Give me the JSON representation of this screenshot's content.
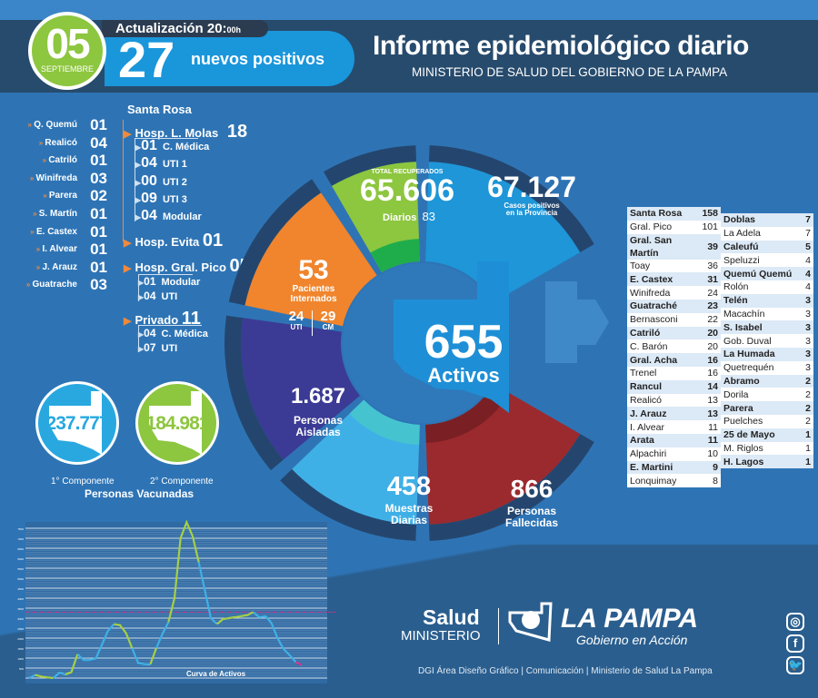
{
  "header": {
    "day": "05",
    "month": "SEPTIEMBRE",
    "update_label": "Actualización 20:",
    "update_time": "00h",
    "new_positives": "27",
    "new_positives_label": "nuevos positivos",
    "title": "Informe epidemiológico diario",
    "subtitle": "MINISTERIO DE SALUD DEL GOBIERNO DE LA PAMPA"
  },
  "internados_localidades": [
    {
      "name": "Q. Quemú",
      "value": "01"
    },
    {
      "name": "Realicó",
      "value": "04"
    },
    {
      "name": "Catriló",
      "value": "01"
    },
    {
      "name": "Winifreda",
      "value": "03"
    },
    {
      "name": "Parera",
      "value": "02"
    },
    {
      "name": "S. Martín",
      "value": "01"
    },
    {
      "name": "E. Castex",
      "value": "01"
    },
    {
      "name": "I. Alvear",
      "value": "01"
    },
    {
      "name": "J. Arauz",
      "value": "01"
    },
    {
      "name": "Guatrache",
      "value": "03"
    }
  ],
  "santa_rosa": {
    "label": "Santa Rosa",
    "molas": {
      "label": "Hosp. L. Molas",
      "value": "18",
      "items": [
        {
          "value": "01",
          "label": "C. Médica"
        },
        {
          "value": "04",
          "label": "UTI 1"
        },
        {
          "value": "00",
          "label": "UTI 2"
        },
        {
          "value": "09",
          "label": "UTI 3"
        },
        {
          "value": "04",
          "label": "Modular"
        }
      ]
    },
    "evita": {
      "label": "Hosp. Evita",
      "value": "01"
    }
  },
  "gral_pico": {
    "label": "Hosp. Gral. Pico",
    "value": "05",
    "items": [
      {
        "value": "01",
        "label": "Modular"
      },
      {
        "value": "04",
        "label": "UTI"
      }
    ]
  },
  "privado": {
    "label": "Privado",
    "value": "11",
    "items": [
      {
        "value": "04",
        "label": "C. Médica"
      },
      {
        "value": "07",
        "label": "UTI"
      }
    ]
  },
  "vacunas": {
    "first": "237.777",
    "first_label": "1° Componente",
    "second": "184.981",
    "second_label": "2° Componente",
    "title": "Personas Vacunadas"
  },
  "donut": {
    "recuperados": {
      "label": "TOTAL RECUPERADOS",
      "value": "65.606",
      "daily_label": "Diarios",
      "daily": "83",
      "color": "#8dc63f"
    },
    "positivos": {
      "value": "67.127",
      "label1": "Casos positivos",
      "label2": "en la Provincia",
      "color": "#1e96d8"
    },
    "internados": {
      "value": "53",
      "label1": "Pacientes",
      "label2": "Internados",
      "uti": "24",
      "uti_label": "UTI",
      "cm": "29",
      "cm_label": "CM",
      "color": "#f0852d"
    },
    "aisladas": {
      "value": "1.687",
      "label1": "Personas",
      "label2": "Aisladas",
      "color": "#3b3b95"
    },
    "muestras": {
      "value": "458",
      "label1": "Muestras",
      "label2": "Diarias",
      "color": "#3fb0e6"
    },
    "fallecidas": {
      "value": "866",
      "label1": "Personas",
      "label2": "Fallecidas",
      "color": "#9b2a2e"
    },
    "activos": {
      "value": "655",
      "label": "Activos",
      "color": "#1e8fd6"
    }
  },
  "table_left": [
    [
      "Santa Rosa",
      "158",
      true
    ],
    [
      "Gral. Pico",
      "101",
      false
    ],
    [
      "Gral. San Martín",
      "39",
      true
    ],
    [
      "Toay",
      "36",
      false
    ],
    [
      "E. Castex",
      "31",
      true
    ],
    [
      "Winifreda",
      "24",
      false
    ],
    [
      "Guatraché",
      "23",
      true
    ],
    [
      "Bernasconi",
      "22",
      false
    ],
    [
      "Catriló",
      "20",
      true
    ],
    [
      "C. Barón",
      "20",
      false
    ],
    [
      "Gral. Acha",
      "16",
      true
    ],
    [
      "Trenel",
      "16",
      false
    ],
    [
      "Rancul",
      "14",
      true
    ],
    [
      "Realicó",
      "13",
      false
    ],
    [
      "J. Arauz",
      "13",
      true
    ],
    [
      "I. Alvear",
      "11",
      false
    ],
    [
      "Arata",
      "11",
      true
    ],
    [
      "Alpachiri",
      "10",
      false
    ],
    [
      "E. Martini",
      "9",
      true
    ],
    [
      "Lonquimay",
      "8",
      false
    ]
  ],
  "table_right": [
    [
      "Doblas",
      "7",
      true
    ],
    [
      "La Adela",
      "7",
      false
    ],
    [
      "Caleufú",
      "5",
      true
    ],
    [
      "Speluzzi",
      "4",
      false
    ],
    [
      "Quemú Quemú",
      "4",
      true
    ],
    [
      "Rolón",
      "4",
      false
    ],
    [
      "Telén",
      "3",
      true
    ],
    [
      "Macachín",
      "3",
      false
    ],
    [
      "S. Isabel",
      "3",
      true
    ],
    [
      "Gob. Duval",
      "3",
      false
    ],
    [
      "La Humada",
      "3",
      true
    ],
    [
      "Quetrequén",
      "3",
      false
    ],
    [
      "Abramo",
      "2",
      true
    ],
    [
      "Dorila",
      "2",
      false
    ],
    [
      "Parera",
      "2",
      true
    ],
    [
      "Puelches",
      "2",
      false
    ],
    [
      "25 de Mayo",
      "1",
      true
    ],
    [
      "M. Riglos",
      "1",
      false
    ],
    [
      "H. Lagos",
      "1",
      true
    ]
  ],
  "chart_data": {
    "type": "line",
    "title": "Curva de Activos",
    "xlabel": "",
    "ylabel": "",
    "ylim": [
      0,
      7500
    ],
    "yticks": [
      500,
      1000,
      1500,
      2000,
      2500,
      3000,
      3500,
      4000,
      4500,
      5000,
      5500,
      6000,
      6500,
      7000,
      7500
    ],
    "reference_line": 3300,
    "grid": true,
    "segments": [
      {
        "color": "#3fb0e6",
        "values": [
          0,
          150
        ]
      },
      {
        "color": "#a6cf45",
        "values": [
          150,
          80,
          30,
          0
        ]
      },
      {
        "color": "#3fb0e6",
        "values": [
          0,
          270,
          180
        ]
      },
      {
        "color": "#a6cf45",
        "values": [
          180,
          300,
          1200
        ]
      },
      {
        "color": "#3fb0e6",
        "values": [
          1200,
          900,
          900,
          980,
          1650,
          2350,
          2700
        ]
      },
      {
        "color": "#a6cf45",
        "values": [
          2700,
          2650,
          2250,
          1500
        ]
      },
      {
        "color": "#3fb0e6",
        "values": [
          1500,
          750,
          700,
          680
        ]
      },
      {
        "color": "#a6cf45",
        "values": [
          680,
          1500
        ]
      },
      {
        "color": "#3fb0e6",
        "values": [
          1500,
          2200,
          2800
        ]
      },
      {
        "color": "#a6cf45",
        "values": [
          2800,
          4000,
          7000,
          7800,
          7100,
          5800
        ]
      },
      {
        "color": "#3fb0e6",
        "values": [
          5800,
          4400,
          3000,
          2700
        ]
      },
      {
        "color": "#a6cf45",
        "values": [
          2700,
          2950,
          3000,
          3050,
          3100,
          3150,
          3300
        ]
      },
      {
        "color": "#3fb0e6",
        "values": [
          3300,
          3050,
          3100,
          2750,
          2000,
          1450,
          1150,
          800
        ]
      },
      {
        "color": "#d0358f",
        "values": [
          800,
          650
        ]
      }
    ]
  },
  "footer": {
    "salud": "Salud",
    "ministerio": "MINISTERIO",
    "la_pampa": "LA PAMPA",
    "slogan": "Gobierno en Acción",
    "credits": "DGI Área Diseño Gráfico  | Comunicación | Ministerio de Salud La Pampa",
    "social": [
      "instagram-icon",
      "facebook-icon",
      "twitter-icon"
    ]
  }
}
